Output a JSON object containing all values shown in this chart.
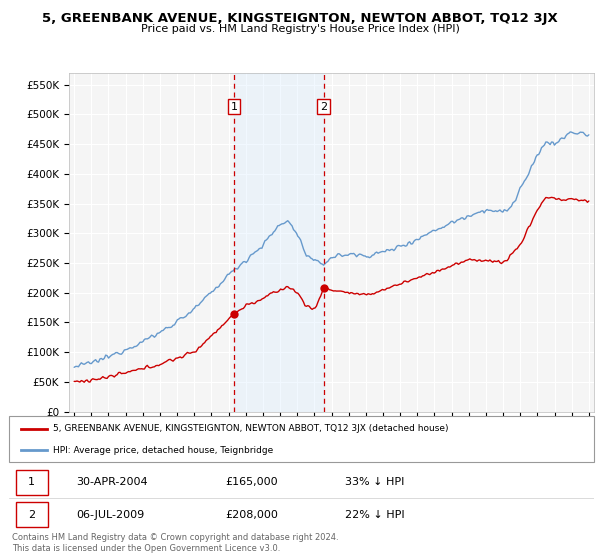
{
  "title": "5, GREENBANK AVENUE, KINGSTEIGNTON, NEWTON ABBOT, TQ12 3JX",
  "subtitle": "Price paid vs. HM Land Registry's House Price Index (HPI)",
  "ylabel_ticks": [
    "£0",
    "£50K",
    "£100K",
    "£150K",
    "£200K",
    "£250K",
    "£300K",
    "£350K",
    "£400K",
    "£450K",
    "£500K",
    "£550K"
  ],
  "ytick_vals": [
    0,
    50000,
    100000,
    150000,
    200000,
    250000,
    300000,
    350000,
    400000,
    450000,
    500000,
    550000
  ],
  "ylim": [
    0,
    570000
  ],
  "hpi_color": "#6699cc",
  "hpi_linewidth": 1.0,
  "price_color": "#cc0000",
  "price_linewidth": 1.0,
  "vline_color": "#cc0000",
  "shade_color": "#ddeeff",
  "shade_alpha": 0.4,
  "sale1_date": 2004.33,
  "sale1_price": 165000,
  "sale1_label": "1",
  "sale2_date": 2009.55,
  "sale2_price": 208000,
  "sale2_label": "2",
  "legend_line1": "5, GREENBANK AVENUE, KINGSTEIGNTON, NEWTON ABBOT, TQ12 3JX (detached house)",
  "legend_line2": "HPI: Average price, detached house, Teignbridge",
  "footnote": "Contains HM Land Registry data © Crown copyright and database right 2024.\nThis data is licensed under the Open Government Licence v3.0.",
  "table_row1": [
    "1",
    "30-APR-2004",
    "£165,000",
    "33% ↓ HPI"
  ],
  "table_row2": [
    "2",
    "06-JUL-2009",
    "£208,000",
    "22% ↓ HPI"
  ],
  "plot_bg_color": "#f5f5f5",
  "grid_color": "#ffffff",
  "fig_bg_color": "#ffffff"
}
